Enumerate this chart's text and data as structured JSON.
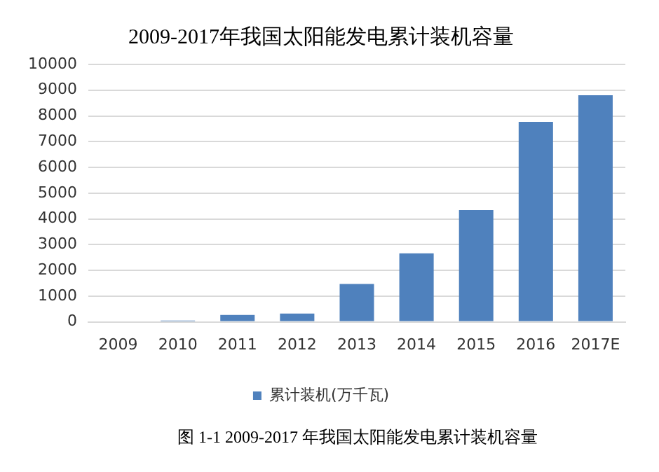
{
  "chart_data": {
    "type": "bar",
    "title": "2009-2017年我国太阳能发电累计装机容量",
    "categories": [
      "2009",
      "2010",
      "2011",
      "2012",
      "2013",
      "2014",
      "2015",
      "2016",
      "2017E"
    ],
    "series": [
      {
        "name": "累计装机(万千瓦)",
        "color": "#4f81bd",
        "values": [
          null,
          50,
          270,
          320,
          1470,
          2660,
          4340,
          7770,
          8800
        ]
      }
    ],
    "ylim": [
      0,
      10000
    ],
    "yticks": [
      0,
      1000,
      2000,
      3000,
      4000,
      5000,
      6000,
      7000,
      8000,
      9000,
      10000
    ],
    "grid": "y",
    "legend": "bottom",
    "annotations": [
      "图 1-1 2009-2017 年我国太阳能发电累计装机容量"
    ]
  }
}
